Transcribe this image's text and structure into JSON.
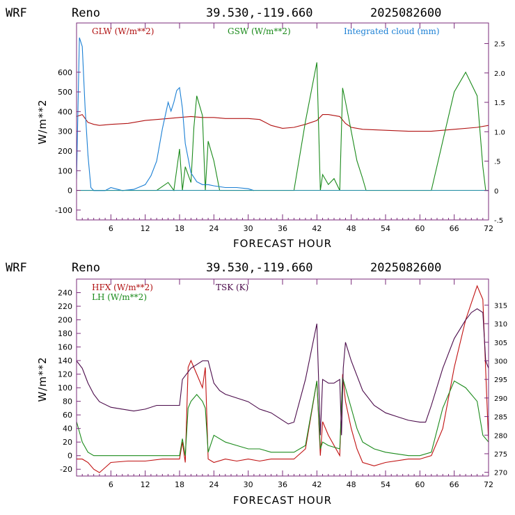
{
  "chart_data": [
    {
      "type": "line",
      "header": {
        "model": "WRF",
        "station": "Reno",
        "coords": "39.530,-119.660",
        "run": "2025082600"
      },
      "xlabel": "FORECAST HOUR",
      "ylabel": "W/m**2",
      "xlim": [
        0,
        72
      ],
      "ylim": [
        -150,
        850
      ],
      "y2lim": [
        -0.5,
        2.85
      ],
      "xticks": [
        "6",
        "12",
        "18",
        "24",
        "30",
        "36",
        "42",
        "48",
        "54",
        "60",
        "66",
        "72"
      ],
      "yticks": [
        "-100",
        "0",
        "100",
        "200",
        "300",
        "400",
        "500",
        "600"
      ],
      "y2ticks": [
        "-.5",
        "0",
        ".5",
        "1.0",
        "1.5",
        "2.0",
        "2.5"
      ],
      "colors": {
        "frame": "#7a2a7a",
        "GLW": "#b01010",
        "GSW": "#1a8a1a",
        "cloud": "#1a7fd4"
      },
      "series": [
        {
          "name": "GLW (W/m**2)",
          "color_key": "GLW",
          "axis": "left",
          "x": [
            0,
            1,
            2,
            3,
            4,
            6,
            9,
            12,
            14,
            16,
            18,
            20,
            22,
            24,
            26,
            28,
            30,
            32,
            34,
            36,
            38,
            40,
            42,
            43,
            44,
            46,
            47,
            48,
            50,
            54,
            58,
            62,
            66,
            70,
            72
          ],
          "y": [
            375,
            385,
            345,
            335,
            330,
            335,
            340,
            355,
            360,
            365,
            370,
            375,
            370,
            370,
            365,
            365,
            365,
            360,
            330,
            315,
            320,
            335,
            355,
            385,
            385,
            375,
            340,
            320,
            310,
            305,
            300,
            300,
            310,
            320,
            330
          ]
        },
        {
          "name": "GSW (W/m**2)",
          "color_key": "GSW",
          "axis": "left",
          "x": [
            0,
            1,
            14,
            16,
            17,
            18,
            18.5,
            19,
            20,
            20.5,
            21,
            22,
            22.5,
            23,
            24,
            25,
            36,
            38,
            40,
            42,
            42.6,
            43,
            44,
            45,
            46,
            46.5,
            47,
            48,
            49,
            50,
            50.6,
            61,
            62,
            64,
            66,
            68,
            70,
            71,
            71.5,
            72
          ],
          "y": [
            0,
            0,
            0,
            40,
            0,
            210,
            0,
            120,
            40,
            320,
            480,
            380,
            0,
            250,
            150,
            0,
            0,
            0,
            350,
            650,
            0,
            80,
            30,
            60,
            0,
            520,
            450,
            300,
            150,
            60,
            0,
            0,
            0,
            250,
            500,
            600,
            480,
            120,
            0,
            0
          ]
        },
        {
          "name": "Integrated cloud (mm)",
          "color_key": "cloud",
          "axis": "right",
          "x": [
            0,
            0.5,
            1,
            1.5,
            2,
            2.5,
            3,
            4,
            5,
            6,
            8,
            10,
            12,
            13,
            14,
            15,
            16,
            16.5,
            17,
            17.5,
            18,
            18.5,
            19,
            20,
            21,
            22,
            23,
            24,
            26,
            28,
            30,
            31
          ],
          "y": [
            0.2,
            2.6,
            2.45,
            1.4,
            0.6,
            0.05,
            0,
            0,
            0,
            0.05,
            0,
            0.02,
            0.1,
            0.25,
            0.5,
            1.05,
            1.5,
            1.35,
            1.5,
            1.7,
            1.75,
            1.4,
            0.8,
            0.3,
            0.15,
            0.1,
            0.1,
            0.08,
            0.05,
            0.05,
            0.03,
            0
          ]
        }
      ]
    },
    {
      "type": "line",
      "header": {
        "model": "WRF",
        "station": "Reno",
        "coords": "39.530,-119.660",
        "run": "2025082600"
      },
      "xlabel": "FORECAST HOUR",
      "ylabel": "W/m**2",
      "xlim": [
        0,
        72
      ],
      "ylim": [
        -30,
        260
      ],
      "y2lim": [
        269,
        322
      ],
      "xticks": [
        "6",
        "12",
        "18",
        "24",
        "30",
        "36",
        "42",
        "48",
        "54",
        "60",
        "66",
        "72"
      ],
      "yticks": [
        "-20",
        "0",
        "20",
        "40",
        "60",
        "80",
        "100",
        "120",
        "140",
        "160",
        "180",
        "200",
        "220",
        "240"
      ],
      "y2ticks": [
        "270",
        "275",
        "280",
        "285",
        "290",
        "295",
        "300",
        "305",
        "310",
        "315"
      ],
      "colors": {
        "frame": "#7a2a7a",
        "HFX": "#c01010",
        "LH": "#1a8a1a",
        "TSK": "#4a0a4a"
      },
      "series": [
        {
          "name": "HFX (W/m**2)",
          "color_key": "HFX",
          "axis": "left",
          "x": [
            0,
            1,
            2,
            3,
            4,
            6,
            9,
            12,
            15,
            17,
            18,
            18.5,
            19,
            19.5,
            20,
            21,
            22,
            22.5,
            23,
            24,
            26,
            28,
            30,
            32,
            34,
            36,
            38,
            40,
            42,
            42.6,
            43,
            44,
            46,
            46.5,
            47,
            48,
            49,
            50,
            52,
            54,
            58,
            60,
            62,
            64,
            66,
            68,
            70,
            71,
            72
          ],
          "y": [
            -5,
            -5,
            -10,
            -20,
            -25,
            -10,
            -8,
            -8,
            -5,
            -5,
            -5,
            20,
            -10,
            130,
            140,
            120,
            100,
            130,
            -5,
            -10,
            -5,
            -8,
            -5,
            -8,
            -5,
            -5,
            -5,
            10,
            110,
            0,
            50,
            30,
            0,
            120,
            80,
            40,
            10,
            -10,
            -15,
            -10,
            -5,
            -5,
            0,
            40,
            130,
            200,
            250,
            230,
            20
          ]
        },
        {
          "name": "LH (W/m**2)",
          "color_key": "LH",
          "axis": "left",
          "x": [
            0,
            1,
            2,
            3,
            4,
            6,
            9,
            12,
            15,
            17,
            18,
            18.5,
            19,
            19.5,
            20,
            21,
            22,
            22.5,
            23,
            24,
            26,
            28,
            30,
            32,
            34,
            36,
            38,
            40,
            42,
            42.6,
            43,
            44,
            46,
            46.5,
            47,
            48,
            49,
            50,
            52,
            54,
            58,
            60,
            62,
            64,
            66,
            68,
            70,
            71,
            72
          ],
          "y": [
            50,
            20,
            5,
            0,
            0,
            0,
            0,
            0,
            0,
            0,
            0,
            25,
            0,
            70,
            80,
            90,
            80,
            70,
            5,
            30,
            20,
            15,
            10,
            10,
            5,
            5,
            5,
            15,
            110,
            10,
            20,
            15,
            10,
            115,
            100,
            70,
            40,
            20,
            10,
            5,
            0,
            0,
            5,
            70,
            110,
            100,
            80,
            30,
            20
          ]
        },
        {
          "name": "TSK (K)",
          "color_key": "TSK",
          "axis": "right",
          "x": [
            0,
            1,
            2,
            3,
            4,
            6,
            8,
            10,
            12,
            14,
            16,
            18,
            18.5,
            19,
            20,
            21,
            22,
            23,
            24,
            25,
            26,
            28,
            30,
            32,
            34,
            36,
            37,
            38,
            40,
            42,
            42.3,
            42.6,
            43,
            44,
            45,
            46,
            46.3,
            46.6,
            47,
            48,
            49,
            50,
            52,
            54,
            56,
            58,
            60,
            61,
            62,
            64,
            66,
            68,
            69,
            70,
            71,
            71.5,
            72
          ],
          "y": [
            300,
            298,
            294,
            291,
            289,
            287.5,
            287,
            286.5,
            287,
            288,
            288,
            288,
            295,
            296,
            298,
            299,
            300,
            300,
            294,
            292,
            291,
            290,
            289,
            287,
            286,
            284,
            283,
            283.5,
            295,
            310,
            295,
            280,
            295,
            294,
            294,
            295,
            280,
            298,
            305,
            300,
            296,
            292,
            288,
            286,
            285,
            284,
            283.5,
            283.5,
            288,
            298,
            306,
            311,
            313,
            314,
            313,
            300,
            298
          ]
        }
      ]
    }
  ]
}
